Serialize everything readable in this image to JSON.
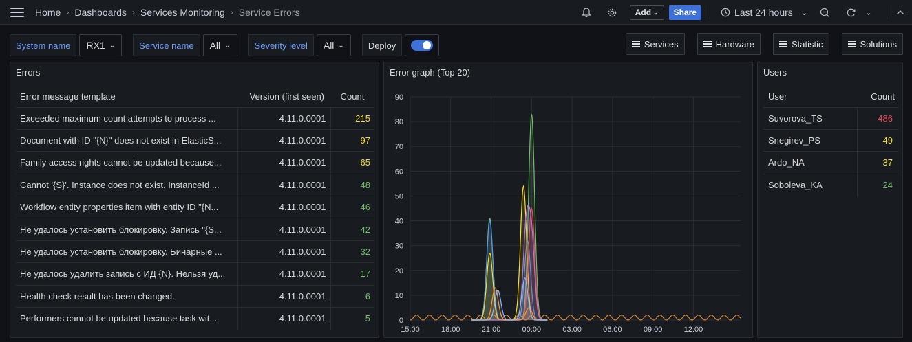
{
  "breadcrumb": {
    "home": "Home",
    "dashboards": "Dashboards",
    "folder": "Services Monitoring",
    "current": "Service Errors"
  },
  "toolbar": {
    "add_label": "Add",
    "share_label": "Share",
    "time_range": "Last 24 hours"
  },
  "variables": {
    "system_name": {
      "label": "System name",
      "value": "RX1"
    },
    "service_name": {
      "label": "Service name",
      "value": "All"
    },
    "severity_level": {
      "label": "Severity level",
      "value": "All"
    },
    "deploy": {
      "label": "Deploy",
      "enabled": true
    }
  },
  "links": [
    "Services",
    "Hardware",
    "Statistic",
    "Solutions"
  ],
  "errors_panel": {
    "title": "Errors",
    "columns": [
      "Error message template",
      "Version (first seen)",
      "Count"
    ],
    "rows": [
      {
        "message": "Exceeded maximum count attempts to process ...",
        "version": "4.11.0.0001",
        "count": "215",
        "color": "yellow"
      },
      {
        "message": "Document with ID \"{N}\" does not exist in ElasticS...",
        "version": "4.11.0.0001",
        "count": "97",
        "color": "yellow"
      },
      {
        "message": "Family access rights cannot be updated because...",
        "version": "4.11.0.0001",
        "count": "65",
        "color": "yellow"
      },
      {
        "message": "Cannot '{S}'. Instance does not exist. InstanceId ...",
        "version": "4.11.0.0001",
        "count": "48",
        "color": "green"
      },
      {
        "message": "Workflow entity properties item with entity ID \"{N...",
        "version": "4.11.0.0001",
        "count": "46",
        "color": "green"
      },
      {
        "message": "Не удалось установить блокировку. Запись \"{S...",
        "version": "4.11.0.0001",
        "count": "42",
        "color": "green"
      },
      {
        "message": "Не удалось установить блокировку. Бинарные ...",
        "version": "4.11.0.0001",
        "count": "32",
        "color": "green"
      },
      {
        "message": "Не удалось удалить запись с ИД {N}. Нельзя уд...",
        "version": "4.11.0.0001",
        "count": "17",
        "color": "green"
      },
      {
        "message": "Health check result has been changed.",
        "version": "4.11.0.0001",
        "count": "6",
        "color": "green"
      },
      {
        "message": "Performers cannot be updated because task wit...",
        "version": "4.11.0.0001",
        "count": "5",
        "color": "green"
      }
    ]
  },
  "graph_panel": {
    "title": "Error graph (Top 20)"
  },
  "users_panel": {
    "title": "Users",
    "columns": [
      "User",
      "Count"
    ],
    "rows": [
      {
        "user": "Suvorova_TS",
        "count": "486",
        "color": "red"
      },
      {
        "user": "Snegirev_PS",
        "count": "49",
        "color": "yellow"
      },
      {
        "user": "Ardo_NA",
        "count": "37",
        "color": "yellow"
      },
      {
        "user": "Soboleva_KA",
        "count": "24",
        "color": "green"
      }
    ]
  },
  "chart_data": {
    "type": "area",
    "title": "Error graph (Top 20)",
    "xlabel": "",
    "ylabel": "",
    "x_ticks": [
      "15:00",
      "18:00",
      "21:00",
      "00:00",
      "03:00",
      "06:00",
      "09:00",
      "12:00"
    ],
    "x_range_hours": [
      15,
      39.5
    ],
    "ylim": [
      0,
      90
    ],
    "y_ticks": [
      0,
      10,
      20,
      30,
      40,
      50,
      60,
      70,
      80,
      90
    ],
    "grid": true,
    "series": [
      {
        "color": "#73bf69",
        "peaks": [
          [
            20.9,
            41
          ],
          [
            24.0,
            83
          ]
        ]
      },
      {
        "color": "#5794f2",
        "peaks": [
          [
            20.9,
            40
          ],
          [
            23.7,
            32
          ]
        ]
      },
      {
        "color": "#fade2a",
        "peaks": [
          [
            20.9,
            27
          ],
          [
            23.4,
            54
          ]
        ]
      },
      {
        "color": "#f2495c",
        "peaks": [
          [
            24.0,
            45
          ]
        ]
      },
      {
        "color": "#b877d9",
        "peaks": [
          [
            23.6,
            36
          ],
          [
            24.0,
            32
          ]
        ]
      },
      {
        "color": "#ff9830",
        "peaks": [
          [
            21.3,
            13
          ],
          [
            23.8,
            5
          ]
        ]
      },
      {
        "color": "#8ab8ff",
        "peaks": [
          [
            21.5,
            12
          ],
          [
            23.5,
            17
          ]
        ]
      }
    ],
    "baseline_series": {
      "color": "#ff9830",
      "amplitude": 2
    }
  }
}
